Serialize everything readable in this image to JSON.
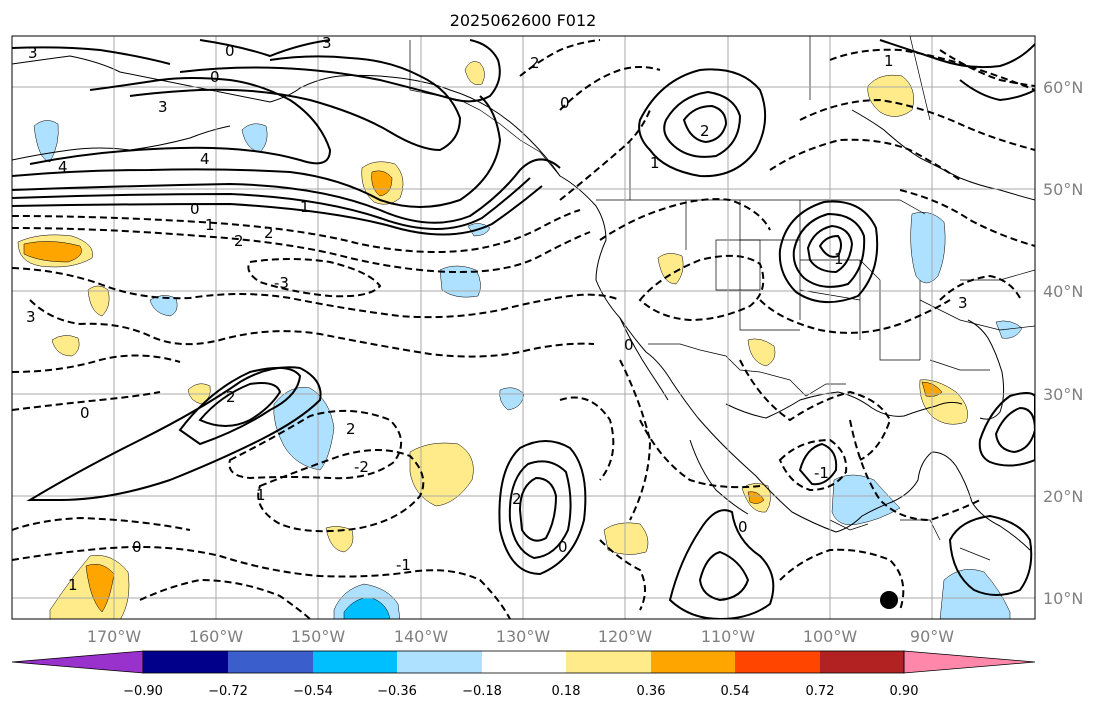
{
  "map": {
    "title": "2025062600 F012",
    "lon_labels": [
      "170°W",
      "160°W",
      "150°W",
      "140°W",
      "130°W",
      "120°W",
      "110°W",
      "100°W",
      "90°W"
    ],
    "lat_labels": [
      "60°N",
      "50°N",
      "40°N",
      "30°N",
      "20°N",
      "10°N"
    ],
    "extent": {
      "lon_min": -178,
      "lon_max": -78,
      "lat_min": 8,
      "lat_max": 65
    },
    "gridlines": true,
    "colors": {
      "pos_018_036": "#ffeb8a",
      "pos_036_054": "#ffa500",
      "neg_018_036": "#aee1ff",
      "neg_036_054": "#00bfff",
      "contour": "#000000"
    }
  },
  "colorbar": {
    "tick_labels": [
      "−0.90",
      "−0.72",
      "−0.54",
      "−0.36",
      "−0.18",
      "0.18",
      "0.36",
      "0.54",
      "0.72",
      "0.90"
    ],
    "colors": [
      "#9932cc",
      "#00008b",
      "#3a5fcd",
      "#00bfff",
      "#aee1ff",
      "#ffffff",
      "#ffeb8a",
      "#ffa500",
      "#ff4500",
      "#b22222",
      "#ff88aa"
    ]
  },
  "contour_labels": {
    "l0a": "0",
    "l0b": "0",
    "l0c": "0",
    "l0d": "0",
    "l0e": "0",
    "l0f": "0",
    "l0g": "0",
    "l0h": "0",
    "l0i": "0",
    "l1a": "1",
    "l1b": "1",
    "l1c": "1",
    "l1d": "1",
    "l1e": "1",
    "l1f": "-1",
    "l1g": "1",
    "l1h": "-1",
    "l1i": "1",
    "l2a": "2",
    "l2b": "2",
    "l2c": "2",
    "l2d": "2",
    "l2e": "-2",
    "l2f": "2",
    "l2g": "2",
    "l2h": "2",
    "l3a": "3",
    "l3b": "3",
    "l3c": "-3",
    "l3d": "3",
    "l3e": "3",
    "l3f": "3",
    "l4a": "4",
    "l4b": "4"
  },
  "markers": {
    "dot_label": ""
  }
}
